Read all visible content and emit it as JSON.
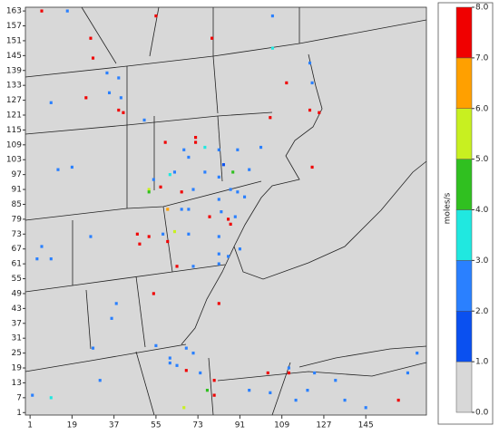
{
  "chart_data": {
    "type": "heatmap",
    "xlim": [
      -1,
      171
    ],
    "ylim": [
      0,
      164.5
    ],
    "xticks": [
      1,
      19,
      37,
      55,
      73,
      91,
      109,
      127,
      145
    ],
    "yticks": [
      1,
      7,
      13,
      19,
      25,
      31,
      37,
      43,
      49,
      55,
      61,
      67,
      73,
      79,
      85,
      91,
      97,
      103,
      109,
      115,
      121,
      127,
      133,
      139,
      145,
      151,
      157,
      163
    ],
    "colorbar": {
      "label": "moles/s",
      "ticks": [
        {
          "value": 0,
          "label": "0.0"
        },
        {
          "value": 1,
          "label": "1.0"
        },
        {
          "value": 2,
          "label": "2.0"
        },
        {
          "value": 3,
          "label": "3.0"
        },
        {
          "value": 4,
          "label": "4.0"
        },
        {
          "value": 5,
          "label": "5.0"
        },
        {
          "value": 6,
          "label": "6.0"
        },
        {
          "value": 7,
          "label": "7.0"
        },
        {
          "value": 8,
          "label": "8.0"
        }
      ],
      "colors": [
        "#d8d8d8",
        "#0a50f0",
        "#2a80ff",
        "#20e8e0",
        "#30c020",
        "#c8f020",
        "#ffa000",
        "#f00000"
      ]
    },
    "x": [
      6,
      17,
      55,
      105,
      27,
      79,
      105,
      28,
      121,
      34,
      39,
      111,
      122,
      10,
      25,
      35,
      40,
      39,
      41,
      50,
      104,
      121,
      125,
      72,
      72,
      59,
      76,
      67,
      82,
      90,
      100,
      69,
      84,
      13,
      19,
      63,
      88,
      95,
      122,
      54,
      61,
      76,
      82,
      52,
      57,
      52,
      66,
      71,
      87,
      90,
      93,
      82,
      60,
      66,
      69,
      78,
      86,
      87,
      89,
      83,
      47,
      52,
      58,
      63,
      69,
      27,
      82,
      60,
      48,
      6,
      82,
      91,
      4,
      10,
      64,
      71,
      82,
      86,
      54,
      82,
      38,
      36,
      28,
      55,
      61,
      68,
      71,
      64,
      68,
      74,
      80,
      103,
      112,
      123,
      132,
      136,
      2,
      10,
      77,
      80,
      95,
      104,
      115,
      159,
      163,
      167,
      145,
      67,
      112,
      120,
      31,
      61
    ],
    "y": [
      163,
      163,
      161,
      161,
      152,
      152,
      148,
      144,
      142,
      138,
      136,
      134,
      134,
      126,
      128,
      130,
      128,
      123,
      122,
      119,
      120,
      123,
      122,
      112,
      110,
      110,
      108,
      107,
      107,
      107,
      108,
      104,
      101,
      99,
      100,
      98,
      98,
      99,
      100,
      95,
      97,
      98,
      96,
      91,
      92,
      90,
      90,
      91,
      91,
      90,
      88,
      87,
      83,
      83,
      83,
      80,
      79,
      77,
      80,
      82,
      73,
      72,
      73,
      74,
      73,
      72,
      72,
      70,
      69,
      68,
      65,
      67,
      63,
      63,
      60,
      60,
      61,
      64,
      49,
      45,
      45,
      39,
      27,
      28,
      23,
      27,
      25,
      20,
      18,
      17,
      14,
      17,
      19,
      17,
      14,
      6,
      8,
      7,
      10,
      8,
      10,
      9,
      6,
      6,
      17,
      25,
      3,
      3,
      17,
      10,
      14,
      21
    ],
    "values": [
      7.5,
      2.4,
      7.3,
      2.6,
      7.6,
      7.4,
      3.5,
      7.7,
      2.5,
      2.3,
      2.6,
      7.5,
      2.4,
      2.5,
      7.2,
      2.6,
      2.4,
      7.6,
      7.3,
      2.5,
      7.4,
      7.8,
      7.5,
      7.6,
      7.9,
      7.3,
      3.4,
      2.5,
      2.6,
      2.3,
      2.4,
      2.6,
      1.6,
      2.5,
      2.4,
      2.3,
      4.5,
      2.6,
      7.5,
      2.4,
      3.6,
      2.5,
      2.4,
      5.5,
      7.4,
      4.4,
      7.6,
      2.5,
      2.3,
      2.6,
      2.4,
      2.5,
      6.5,
      2.4,
      2.6,
      7.8,
      7.5,
      7.9,
      2.4,
      2.5,
      7.4,
      7.6,
      2.5,
      5.4,
      2.3,
      2.4,
      2.6,
      7.3,
      7.5,
      2.4,
      2.6,
      2.5,
      2.4,
      2.5,
      7.4,
      2.6,
      2.5,
      2.4,
      7.5,
      7.6,
      2.4,
      2.5,
      2.6,
      2.4,
      2.5,
      2.3,
      2.6,
      2.4,
      7.5,
      2.5,
      7.7,
      7.4,
      2.5,
      2.6,
      2.4,
      2.5,
      2.4,
      3.5,
      4.6,
      7.5,
      2.5,
      2.4,
      2.6,
      7.6,
      2.5,
      2.4,
      2.6,
      5.5,
      7.3,
      2.5,
      2.4,
      2.5
    ]
  }
}
